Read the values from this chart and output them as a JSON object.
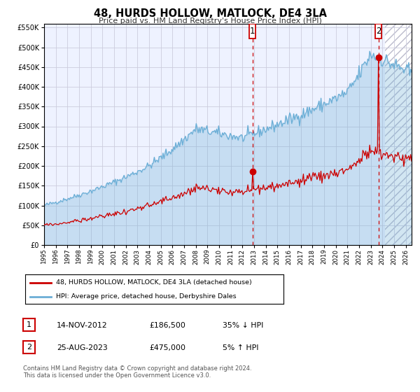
{
  "title": "48, HURDS HOLLOW, MATLOCK, DE4 3LA",
  "subtitle": "Price paid vs. HM Land Registry's House Price Index (HPI)",
  "hpi_color": "#6baed6",
  "price_color": "#cc0000",
  "plot_bg_color": "#eef2ff",
  "grid_color": "#ccccdd",
  "ylim": [
    0,
    560000
  ],
  "yticks": [
    0,
    50000,
    100000,
    150000,
    200000,
    250000,
    300000,
    350000,
    400000,
    450000,
    500000,
    550000
  ],
  "xlim_start": 1995.0,
  "xlim_end": 2026.5,
  "xticks": [
    1995,
    1996,
    1997,
    1998,
    1999,
    2000,
    2001,
    2002,
    2003,
    2004,
    2005,
    2006,
    2007,
    2008,
    2009,
    2010,
    2011,
    2012,
    2013,
    2014,
    2015,
    2016,
    2017,
    2018,
    2019,
    2020,
    2021,
    2022,
    2023,
    2024,
    2025,
    2026
  ],
  "purchase1_date": 2012.87,
  "purchase1_price": 186500,
  "purchase1_label": "1",
  "purchase2_date": 2023.65,
  "purchase2_price": 475000,
  "purchase2_label": "2",
  "legend_line1": "48, HURDS HOLLOW, MATLOCK, DE4 3LA (detached house)",
  "legend_line2": "HPI: Average price, detached house, Derbyshire Dales",
  "table_row1": [
    "1",
    "14-NOV-2012",
    "£186,500",
    "35% ↓ HPI"
  ],
  "table_row2": [
    "2",
    "25-AUG-2023",
    "£475,000",
    "5% ↑ HPI"
  ],
  "footnote": "Contains HM Land Registry data © Crown copyright and database right 2024.\nThis data is licensed under the Open Government Licence v3.0.",
  "hatch_start": 2024.17
}
